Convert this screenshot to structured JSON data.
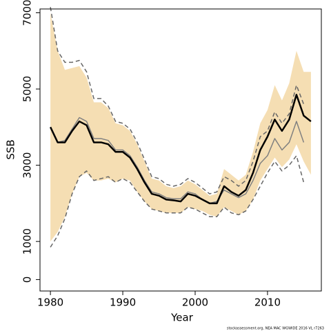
{
  "chart_data": {
    "type": "line",
    "xlabel": "Year",
    "ylabel": "SSB",
    "footnote": "stockassessment.org, NEA MAC WGWIDE 2016 VL r7263",
    "x": [
      1980,
      1981,
      1982,
      1983,
      1984,
      1985,
      1986,
      1987,
      1988,
      1989,
      1990,
      1991,
      1992,
      1993,
      1994,
      1995,
      1996,
      1997,
      1998,
      1999,
      2000,
      2001,
      2002,
      2003,
      2004,
      2005,
      2006,
      2007,
      2008,
      2009,
      2010,
      2011,
      2012,
      2013,
      2014,
      2015,
      2016
    ],
    "xlim": [
      1978.56,
      2017.44
    ],
    "xticks": [
      1980,
      1990,
      2000,
      2010
    ],
    "ylim": [
      -300,
      7100
    ],
    "yticks": [
      0,
      1000,
      3000,
      5000,
      7000
    ],
    "band": {
      "color": "#f5deb3",
      "upper": [
        7000,
        6000,
        5500,
        5550,
        5600,
        5300,
        4650,
        4650,
        4500,
        4100,
        4050,
        3900,
        3550,
        3100,
        2650,
        2600,
        2450,
        2400,
        2450,
        2600,
        2500,
        2350,
        2200,
        2250,
        2900,
        2750,
        2600,
        2750,
        3350,
        4100,
        4450,
        5100,
        4700,
        5150,
        6000,
        5450,
        5450
      ],
      "lower": [
        1000,
        1250,
        1650,
        2250,
        2700,
        2800,
        2600,
        2600,
        2650,
        2550,
        2650,
        2600,
        2300,
        2050,
        1850,
        1800,
        1750,
        1750,
        1750,
        1900,
        1850,
        1800,
        1700,
        1650,
        1900,
        1800,
        1700,
        1800,
        2100,
        2600,
        2900,
        3200,
        2950,
        3150,
        3550,
        3100,
        2750
      ]
    },
    "series": [
      {
        "color": "#666666",
        "dashed": true,
        "width": 1.5,
        "values": [
          7150,
          6000,
          5700,
          5700,
          5750,
          5450,
          4750,
          4750,
          4550,
          4150,
          4100,
          3950,
          3600,
          3150,
          2700,
          2650,
          2500,
          2450,
          2500,
          2650,
          2550,
          2400,
          2250,
          2300,
          2700,
          2600,
          2450,
          2600,
          3100,
          3750,
          3900,
          4400,
          4100,
          4350,
          5100,
          4600,
          null
        ]
      },
      {
        "color": "#666666",
        "dashed": true,
        "width": 1.5,
        "values": [
          850,
          1150,
          1600,
          2250,
          2700,
          2850,
          2600,
          2650,
          2700,
          2550,
          2650,
          2550,
          2300,
          2050,
          1850,
          1800,
          1750,
          1750,
          1750,
          1900,
          1850,
          1750,
          1650,
          1650,
          1900,
          1750,
          1700,
          1800,
          2100,
          2450,
          2800,
          3100,
          2850,
          3000,
          3250,
          2550,
          null
        ]
      },
      {
        "color": "#808080",
        "dashed": false,
        "width": 1.5,
        "values": [
          4000,
          3600,
          3650,
          3950,
          4250,
          4150,
          3700,
          3700,
          3650,
          3400,
          3400,
          3250,
          2950,
          2600,
          2300,
          2250,
          2150,
          2120,
          2120,
          2300,
          2250,
          2100,
          2000,
          2050,
          2350,
          2250,
          2150,
          2250,
          2600,
          3050,
          3250,
          3700,
          3400,
          3600,
          4150,
          3600,
          null
        ]
      },
      {
        "color": "#000000",
        "dashed": false,
        "width": 2.5,
        "values": [
          4000,
          3600,
          3600,
          3900,
          4150,
          4050,
          3600,
          3600,
          3550,
          3350,
          3350,
          3200,
          2900,
          2550,
          2250,
          2200,
          2100,
          2080,
          2050,
          2250,
          2200,
          2100,
          2000,
          2000,
          2450,
          2300,
          2200,
          2350,
          2800,
          3400,
          3750,
          4200,
          3900,
          4200,
          4850,
          4300,
          4150
        ]
      }
    ]
  }
}
